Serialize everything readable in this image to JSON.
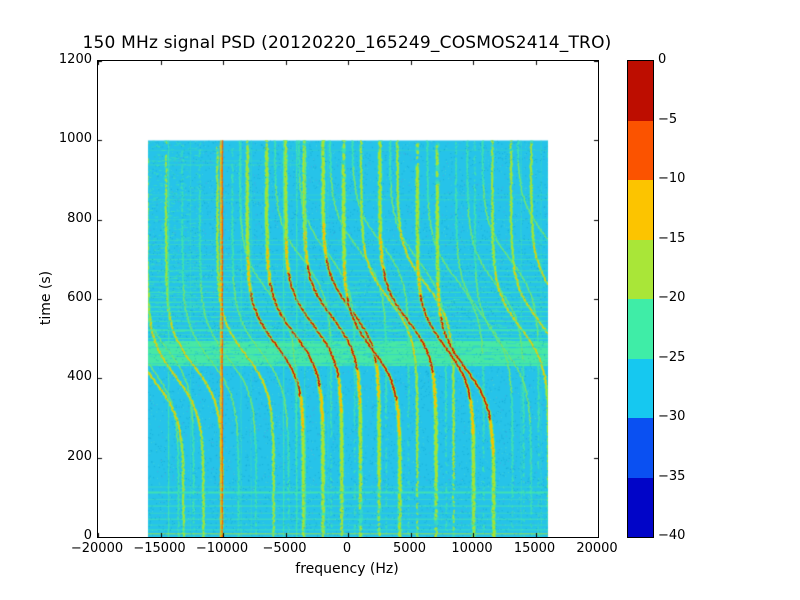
{
  "title": "150 MHz signal PSD (20120220_165249_COSMOS2414_TRO)",
  "axes": {
    "xlabel": "frequency (Hz)",
    "ylabel": "time (s)",
    "x_ticks": [
      {
        "value": -20000,
        "label": "−20000"
      },
      {
        "value": -15000,
        "label": "−15000"
      },
      {
        "value": -10000,
        "label": "−10000"
      },
      {
        "value": -5000,
        "label": "−5000"
      },
      {
        "value": 0,
        "label": "0"
      },
      {
        "value": 5000,
        "label": "5000"
      },
      {
        "value": 10000,
        "label": "10000"
      },
      {
        "value": 15000,
        "label": "15000"
      },
      {
        "value": 20000,
        "label": "20000"
      }
    ],
    "y_ticks": [
      {
        "value": 0,
        "label": "0"
      },
      {
        "value": 200,
        "label": "200"
      },
      {
        "value": 400,
        "label": "400"
      },
      {
        "value": 600,
        "label": "600"
      },
      {
        "value": 800,
        "label": "800"
      },
      {
        "value": 1000,
        "label": "1000"
      },
      {
        "value": 1200,
        "label": "1200"
      }
    ],
    "xlim": [
      -20000,
      20000
    ],
    "ylim": [
      0,
      1200
    ]
  },
  "colorbar": {
    "ticks": [
      "0",
      "−5",
      "−10",
      "−15",
      "−20",
      "−25",
      "−30",
      "−35",
      "−40"
    ],
    "tick_values": [
      0,
      -5,
      -10,
      -15,
      -20,
      -25,
      -30,
      -35,
      -40
    ],
    "segment_colors_top_to_bottom": [
      "#bd0d00",
      "#fb5300",
      "#fcc400",
      "#a9e638",
      "#3feda7",
      "#16c8f0",
      "#0a50f2",
      "#0105c8"
    ]
  },
  "chart_data": {
    "type": "heatmap",
    "title": "150 MHz signal PSD (20120220_165249_COSMOS2414_TRO)",
    "xlabel": "frequency (Hz)",
    "ylabel": "time (s)",
    "xlim": [
      -20000,
      20000
    ],
    "ylim": [
      0,
      1200
    ],
    "colorbar_range_db": [
      -40,
      0
    ],
    "colorbar_levels_db": [
      0,
      -5,
      -10,
      -15,
      -20,
      -25,
      -30,
      -35,
      -40
    ],
    "data_extent": {
      "f_min": -16000,
      "f_max": 16000,
      "t_min": 0,
      "t_max": 1000
    },
    "background_level_db": -27,
    "palette": {
      "background": "#26c3e9",
      "noise_dark": "rgba(12,158,205,0.5)",
      "noise_green": "rgba(110,230,185,0.4)",
      "noise_purple": "rgba(150,118,215,0.32)",
      "spring_green": "#47e8a5",
      "yellow_green": "#a8e432",
      "amber": "#f7c400",
      "orange": "#fb5500",
      "red": "#c31000",
      "tick_color": "#000000"
    },
    "elevated_noise_band": {
      "t_start": 431,
      "t_end": 494,
      "comment": "solid spring-green band (~-22 dB noise floor)"
    },
    "speckle_band": {
      "t_start": 494,
      "t_end": 715,
      "comment": "dense horizontal green interference streaks fading upward"
    },
    "left_speckle_region": {
      "f_min": -16000,
      "f_max": -11800,
      "t_start": 560,
      "t_end": 1000
    },
    "doppler_model": {
      "amplitude_hz": 2250,
      "tau_s": 95,
      "shape": "f(t) = fc - A*tanh((t - t_mid)/tau)"
    },
    "traces": [
      {
        "fc": -15800,
        "t_mid": 430,
        "strength": 1
      },
      {
        "fc": -15400,
        "t_mid": 390,
        "strength": 2
      },
      {
        "fc": -14600,
        "t_mid": 480,
        "strength": 1
      },
      {
        "fc": -13800,
        "t_mid": 405,
        "strength": 2
      },
      {
        "fc": -12300,
        "t_mid": 430,
        "strength": 2
      },
      {
        "fc": -11000,
        "t_mid": 445,
        "strength": 1
      },
      {
        "fc": -9600,
        "t_mid": 452,
        "strength": 1
      },
      {
        "fc": -8200,
        "t_mid": 460,
        "strength": 2
      },
      {
        "fc": -7000,
        "t_mid": 468,
        "strength": 1
      },
      {
        "fc": -6400,
        "t_mid": 618,
        "strength": 1
      },
      {
        "fc": -5800,
        "t_mid": 487,
        "strength": 3
      },
      {
        "fc": -4250,
        "t_mid": 510,
        "strength": 3
      },
      {
        "fc": -3600,
        "t_mid": 698,
        "strength": 1
      },
      {
        "fc": -2750,
        "t_mid": 533,
        "strength": 3
      },
      {
        "fc": -1700,
        "t_mid": 718,
        "strength": 1
      },
      {
        "fc": -1250,
        "t_mid": 553,
        "strength": 3
      },
      {
        "fc": 250,
        "t_mid": 572,
        "strength": 3
      },
      {
        "fc": 800,
        "t_mid": 728,
        "strength": 1
      },
      {
        "fc": 1900,
        "t_mid": 475,
        "strength": 3
      },
      {
        "fc": 2600,
        "t_mid": 743,
        "strength": 1
      },
      {
        "fc": 3300,
        "t_mid": 598,
        "strength": 2
      },
      {
        "fc": 4800,
        "t_mid": 545,
        "strength": 3
      },
      {
        "fc": 5600,
        "t_mid": 698,
        "strength": 1
      },
      {
        "fc": 6200,
        "t_mid": 638,
        "strength": 2
      },
      {
        "fc": 7800,
        "t_mid": 478,
        "strength": 3
      },
      {
        "fc": 8600,
        "t_mid": 652,
        "strength": 1
      },
      {
        "fc": 9400,
        "t_mid": 425,
        "strength": 3
      },
      {
        "fc": 10900,
        "t_mid": 552,
        "strength": 1
      },
      {
        "fc": 11800,
        "t_mid": 638,
        "strength": 1
      },
      {
        "fc": 12400,
        "t_mid": 478,
        "strength": 1
      },
      {
        "fc": 13000,
        "t_mid": 698,
        "strength": 1
      },
      {
        "fc": 13800,
        "t_mid": 528,
        "strength": 2
      },
      {
        "fc": 15300,
        "t_mid": 543,
        "strength": 2
      },
      {
        "fc": 15800,
        "t_mid": 758,
        "strength": 1
      },
      {
        "fc": 16900,
        "t_mid": 598,
        "strength": 2
      },
      {
        "fc": 18300,
        "t_mid": 555,
        "strength": 1
      }
    ],
    "vertical_lines": [
      {
        "f": -14350,
        "color": "spring_green",
        "lw": 1.4,
        "alpha": 0.75
      },
      {
        "f": -12600,
        "color": "spring_green",
        "lw": 1.0,
        "alpha": 0.35
      },
      {
        "f": -10150,
        "color": "amber",
        "lw": 2.6,
        "alpha": 0.9
      },
      {
        "f": -10050,
        "color": "orange",
        "lw": 1.4,
        "alpha": 0.95
      },
      {
        "f": -8550,
        "color": "spring_green",
        "lw": 1.0,
        "alpha": 0.5
      },
      {
        "f": -7750,
        "color": "spring_green",
        "lw": 1.0,
        "alpha": 0.4
      },
      {
        "f": -5150,
        "color": "spring_green",
        "lw": 1.4,
        "alpha": 0.7
      },
      {
        "f": -4100,
        "color": "spring_green",
        "lw": 1.4,
        "alpha": 0.75
      },
      {
        "f": -3450,
        "color": "spring_green",
        "lw": 1.2,
        "alpha": 0.55
      },
      {
        "f": -1600,
        "color": "spring_green",
        "lw": 1.0,
        "alpha": 0.4
      },
      {
        "f": 13850,
        "color": "spring_green",
        "lw": 1.0,
        "alpha": 0.45
      },
      {
        "f": 15450,
        "color": "spring_green",
        "lw": 1.0,
        "alpha": 0.4
      }
    ],
    "horizontal_lines": [
      {
        "t": 8,
        "alpha": 0.85,
        "lw": 1,
        "color": "yellow_green"
      },
      {
        "t": 18,
        "alpha": 0.7,
        "lw": 1
      },
      {
        "t": 30,
        "alpha": 0.5,
        "lw": 1
      },
      {
        "t": 45,
        "alpha": 0.8,
        "lw": 1
      },
      {
        "t": 60,
        "alpha": 0.5,
        "lw": 1
      },
      {
        "t": 78,
        "alpha": 0.8,
        "lw": 1
      },
      {
        "t": 95,
        "alpha": 0.5,
        "lw": 1
      },
      {
        "t": 112,
        "alpha": 0.8,
        "lw": 2
      },
      {
        "t": 126,
        "alpha": 0.5,
        "lw": 1
      },
      {
        "t": 437,
        "alpha": 0.45,
        "lw": 1,
        "color": "background"
      },
      {
        "t": 460,
        "alpha": 0.4,
        "lw": 1,
        "color": "background"
      },
      {
        "t": 478,
        "alpha": 0.45,
        "lw": 1,
        "color": "background"
      },
      {
        "t": 500,
        "alpha": 0.9,
        "lw": 1
      },
      {
        "t": 510,
        "alpha": 0.5,
        "lw": 1
      },
      {
        "t": 521,
        "alpha": 0.8,
        "lw": 2
      },
      {
        "t": 532,
        "alpha": 0.5,
        "lw": 1
      },
      {
        "t": 544,
        "alpha": 0.9,
        "lw": 1
      },
      {
        "t": 556,
        "alpha": 0.5,
        "lw": 1
      },
      {
        "t": 568,
        "alpha": 0.8,
        "lw": 1
      },
      {
        "t": 580,
        "alpha": 0.5,
        "lw": 2
      },
      {
        "t": 592,
        "alpha": 0.9,
        "lw": 1
      },
      {
        "t": 604,
        "alpha": 0.5,
        "lw": 1
      },
      {
        "t": 617,
        "alpha": 0.8,
        "lw": 1
      },
      {
        "t": 630,
        "alpha": 0.5,
        "lw": 1
      },
      {
        "t": 643,
        "alpha": 0.8,
        "lw": 1
      },
      {
        "t": 657,
        "alpha": 0.5,
        "lw": 1
      },
      {
        "t": 671,
        "alpha": 0.7,
        "lw": 1
      },
      {
        "t": 686,
        "alpha": 0.4,
        "lw": 1
      },
      {
        "t": 700,
        "alpha": 0.6,
        "lw": 1
      },
      {
        "t": 712,
        "alpha": 0.4,
        "lw": 1
      },
      {
        "t": 737,
        "alpha": 0.5,
        "lw": 1
      },
      {
        "t": 748,
        "alpha": 0.5,
        "lw": 1
      },
      {
        "t": 800,
        "alpha": 0.3,
        "lw": 1
      },
      {
        "t": 850,
        "alpha": 0.45,
        "lw": 1
      },
      {
        "t": 862,
        "alpha": 0.35,
        "lw": 1
      },
      {
        "t": 938,
        "alpha": 0.5,
        "lw": 1,
        "f_max": -4000
      },
      {
        "t": 948,
        "alpha": 0.4,
        "lw": 1,
        "f_max": -4000
      },
      {
        "t": 975,
        "alpha": 0.3,
        "lw": 1
      }
    ]
  }
}
